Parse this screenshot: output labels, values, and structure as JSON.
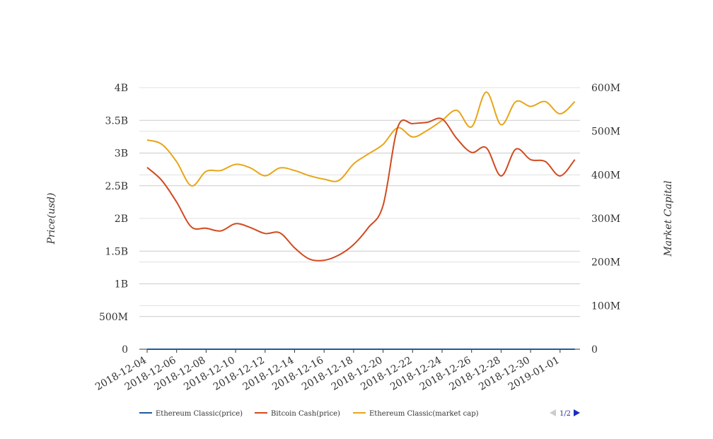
{
  "chart_data": {
    "type": "line",
    "title": "",
    "y_left": {
      "label": "Price(usd)",
      "range": [
        0,
        4000000000
      ],
      "ticks": [
        {
          "value": 0,
          "label": "0"
        },
        {
          "value": 500000000,
          "label": "500M"
        },
        {
          "value": 1000000000,
          "label": "1B"
        },
        {
          "value": 1500000000,
          "label": "1.5B"
        },
        {
          "value": 2000000000,
          "label": "2B"
        },
        {
          "value": 2500000000,
          "label": "2.5B"
        },
        {
          "value": 3000000000,
          "label": "3B"
        },
        {
          "value": 3500000000,
          "label": "3.5B"
        },
        {
          "value": 4000000000,
          "label": "4B"
        }
      ]
    },
    "y_right": {
      "label": "Market Capital",
      "range": [
        0,
        600000000
      ],
      "ticks": [
        {
          "value": 0,
          "label": "0"
        },
        {
          "value": 100000000,
          "label": "100M"
        },
        {
          "value": 200000000,
          "label": "200M"
        },
        {
          "value": 300000000,
          "label": "300M"
        },
        {
          "value": 400000000,
          "label": "400M"
        },
        {
          "value": 500000000,
          "label": "500M"
        },
        {
          "value": 600000000,
          "label": "600M"
        }
      ]
    },
    "x": {
      "tick_labels": [
        "2018-12-04",
        "2018-12-06",
        "2018-12-08",
        "2018-12-10",
        "2018-12-12",
        "2018-12-14",
        "2018-12-16",
        "2018-12-18",
        "2018-12-20",
        "2018-12-22",
        "2018-12-24",
        "2018-12-26",
        "2018-12-28",
        "2018-12-30",
        "2019-01-01"
      ],
      "dates": [
        "2018-12-04",
        "2018-12-05",
        "2018-12-06",
        "2018-12-07",
        "2018-12-08",
        "2018-12-09",
        "2018-12-10",
        "2018-12-11",
        "2018-12-12",
        "2018-12-13",
        "2018-12-14",
        "2018-12-15",
        "2018-12-16",
        "2018-12-17",
        "2018-12-18",
        "2018-12-19",
        "2018-12-20",
        "2018-12-21",
        "2018-12-22",
        "2018-12-23",
        "2018-12-24",
        "2018-12-25",
        "2018-12-26",
        "2018-12-27",
        "2018-12-28",
        "2018-12-29",
        "2018-12-30",
        "2018-12-31",
        "2019-01-01",
        "2019-01-02"
      ]
    },
    "grid": true,
    "legend_position": "bottom-left",
    "series": [
      {
        "name": "Ethereum Classic(price)",
        "axis": "left",
        "color": "#1f5b99",
        "values": [
          0,
          0,
          0,
          0,
          0,
          0,
          0,
          0,
          0,
          0,
          0,
          0,
          0,
          0,
          0,
          0,
          0,
          0,
          0,
          0,
          0,
          0,
          0,
          0,
          0,
          0,
          0,
          0,
          0,
          0
        ]
      },
      {
        "name": "Bitcoin Cash(price)",
        "axis": "left",
        "color": "#d14a1f",
        "values": [
          2780000000,
          2580000000,
          2250000000,
          1870000000,
          1850000000,
          1810000000,
          1920000000,
          1860000000,
          1770000000,
          1780000000,
          1550000000,
          1380000000,
          1360000000,
          1440000000,
          1600000000,
          1860000000,
          2200000000,
          3400000000,
          3450000000,
          3470000000,
          3520000000,
          3220000000,
          3010000000,
          3080000000,
          2650000000,
          3060000000,
          2900000000,
          2870000000,
          2650000000,
          2900000000
        ]
      },
      {
        "name": "Ethereum Classic(market cap)",
        "axis": "right",
        "color": "#e8a517",
        "values": [
          480000000,
          470000000,
          430000000,
          375000000,
          408000000,
          410000000,
          424000000,
          416000000,
          398000000,
          416000000,
          410000000,
          398000000,
          390000000,
          387000000,
          425000000,
          448000000,
          470000000,
          508000000,
          487000000,
          502000000,
          525000000,
          548000000,
          510000000,
          590000000,
          515000000,
          568000000,
          557000000,
          568000000,
          540000000,
          568000000
        ]
      }
    ],
    "pager": {
      "label": "1/2"
    }
  }
}
